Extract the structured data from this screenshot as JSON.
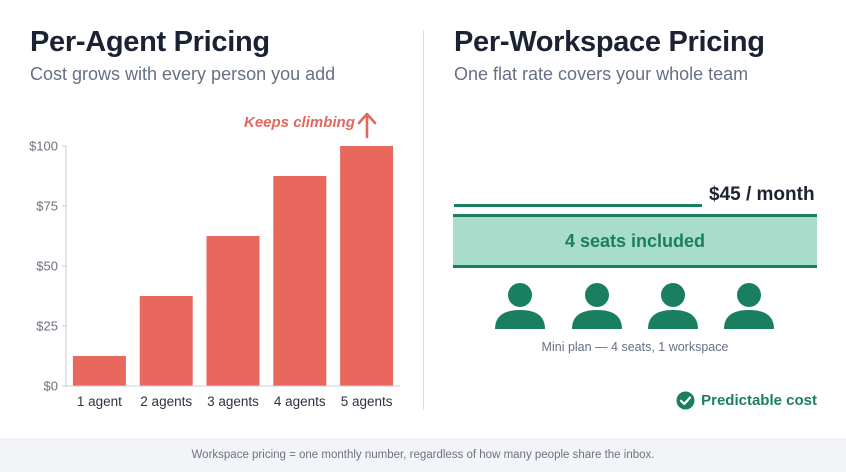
{
  "left_panel": {
    "title": "Per-Agent Pricing",
    "subtitle": "Cost grows with every person you add",
    "annotation": "Keeps climbing"
  },
  "right_panel": {
    "title": "Per-Workspace Pricing",
    "subtitle": "One flat rate covers your whole team",
    "price": "$45 / month",
    "seats_label": "4 seats included",
    "seat_icons": 4,
    "plan_note": "Mini plan — 4 seats, 1 workspace",
    "badge": "Predictable cost",
    "badge_icon": "check-circle-icon"
  },
  "footer": "Workspace pricing = one monthly number, regardless of how many people share the inbox.",
  "colors": {
    "bar": "#e8685e",
    "accent_green": "#1a7f61",
    "band_fill": "#a8dccb",
    "annotation": "#e0685e"
  },
  "chart_data": {
    "type": "bar",
    "categories": [
      "1 agent",
      "2 agents",
      "3 agents",
      "4 agents",
      "5 agents"
    ],
    "values": [
      12.5,
      37.5,
      62.5,
      87.5,
      100
    ],
    "ylim": [
      0,
      100
    ],
    "yticks": [
      0,
      25,
      50,
      75,
      100
    ],
    "ytick_labels": [
      "$0",
      "$25",
      "$50",
      "$75",
      "$100"
    ],
    "grid": false
  }
}
